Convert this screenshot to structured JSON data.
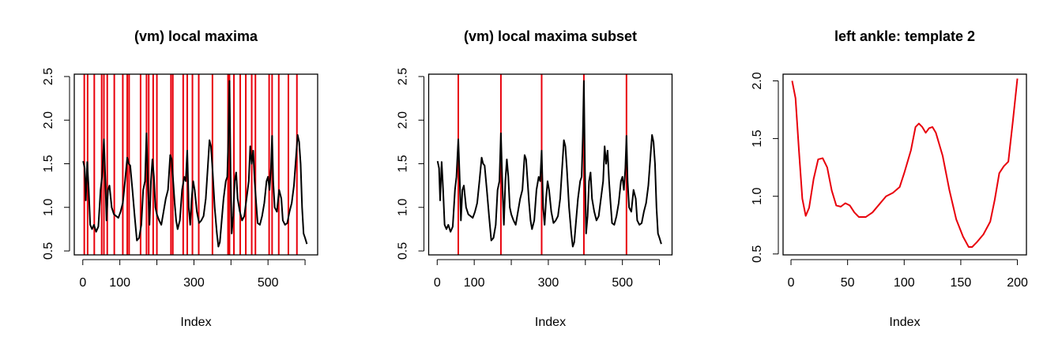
{
  "chart_data": [
    {
      "type": "line",
      "title": "(vm) local maxima",
      "xlabel": "Index",
      "x": [
        1,
        5,
        8,
        12,
        16,
        20,
        25,
        30,
        36,
        42,
        48,
        52,
        57,
        61,
        64,
        68,
        72,
        78,
        84,
        90,
        96,
        102,
        108,
        114,
        120,
        124,
        128,
        134,
        140,
        146,
        152,
        158,
        163,
        168,
        172,
        176,
        180,
        184,
        188,
        192,
        196,
        200,
        206,
        212,
        218,
        224,
        230,
        236,
        240,
        244,
        248,
        252,
        256,
        262,
        268,
        274,
        278,
        282,
        286,
        290,
        294,
        298,
        302,
        308,
        314,
        320,
        326,
        332,
        338,
        342,
        346,
        350,
        356,
        362,
        366,
        370,
        374,
        380,
        386,
        390,
        393,
        396,
        399,
        402,
        406,
        410,
        414,
        418,
        424,
        430,
        436,
        442,
        448,
        452,
        456,
        460,
        464,
        468,
        472,
        478,
        484,
        490,
        496,
        500,
        504,
        508,
        511,
        514,
        518,
        524,
        530,
        536,
        540,
        546,
        552,
        558,
        564,
        570,
        576,
        580,
        584,
        588,
        592,
        596,
        600,
        605
      ],
      "series": [
        {
          "color": "#000000",
          "values": [
            1.53,
            1.45,
            1.08,
            1.52,
            1.2,
            0.8,
            0.75,
            0.8,
            0.72,
            0.78,
            1.2,
            1.35,
            1.78,
            1.3,
            0.85,
            1.2,
            1.25,
            1.0,
            0.92,
            0.9,
            0.88,
            0.95,
            1.05,
            1.3,
            1.57,
            1.5,
            1.48,
            1.2,
            0.9,
            0.62,
            0.65,
            0.8,
            1.2,
            1.3,
            1.85,
            1.25,
            0.8,
            1.3,
            1.55,
            1.35,
            1.0,
            0.92,
            0.85,
            0.8,
            0.95,
            1.1,
            1.2,
            1.6,
            1.55,
            1.3,
            1.05,
            0.85,
            0.75,
            0.85,
            1.2,
            1.35,
            1.3,
            1.65,
            1.0,
            0.8,
            1.1,
            1.3,
            1.2,
            0.95,
            0.82,
            0.85,
            0.9,
            1.1,
            1.5,
            1.77,
            1.7,
            1.45,
            1.0,
            0.7,
            0.55,
            0.6,
            0.8,
            1.1,
            1.3,
            1.35,
            1.8,
            2.45,
            1.4,
            0.7,
            0.9,
            1.3,
            1.4,
            1.1,
            0.95,
            0.85,
            0.9,
            1.1,
            1.3,
            1.7,
            1.5,
            1.65,
            1.3,
            1.05,
            0.82,
            0.8,
            0.9,
            1.05,
            1.3,
            1.35,
            1.2,
            1.45,
            1.82,
            1.3,
            1.0,
            0.95,
            1.2,
            1.1,
            0.85,
            0.8,
            0.82,
            0.95,
            1.05,
            1.25,
            1.6,
            1.83,
            1.75,
            1.5,
            1.0,
            0.7,
            0.65,
            0.58
          ]
        }
      ],
      "vlines": [
        4,
        13,
        31,
        51,
        57,
        66,
        85,
        108,
        120,
        125,
        156,
        172,
        178,
        190,
        200,
        238,
        243,
        271,
        282,
        296,
        313,
        350,
        392,
        396,
        408,
        425,
        440,
        456,
        466,
        503,
        511,
        529,
        555,
        578
      ],
      "vline_color": "#e8000b",
      "xlim": [
        -23,
        634
      ],
      "xticks": [
        0,
        100,
        {
          "value": 200,
          "label": null
        },
        300,
        {
          "value": 400,
          "label": null
        },
        500,
        {
          "value": 600,
          "label": null
        }
      ],
      "ylim": [
        0.455,
        2.527
      ],
      "yticks": [
        0.5,
        {
          "value": 1,
          "label": "1.0"
        },
        1.5,
        {
          "value": 2,
          "label": "2.0"
        },
        2.5
      ]
    },
    {
      "type": "line",
      "title": "(vm) local maxima subset",
      "xlabel": "Index",
      "x": [
        1,
        5,
        8,
        12,
        16,
        20,
        25,
        30,
        36,
        42,
        48,
        52,
        57,
        61,
        64,
        68,
        72,
        78,
        84,
        90,
        96,
        102,
        108,
        114,
        120,
        124,
        128,
        134,
        140,
        146,
        152,
        158,
        163,
        168,
        172,
        176,
        180,
        184,
        188,
        192,
        196,
        200,
        206,
        212,
        218,
        224,
        230,
        236,
        240,
        244,
        248,
        252,
        256,
        262,
        268,
        274,
        278,
        282,
        286,
        290,
        294,
        298,
        302,
        308,
        314,
        320,
        326,
        332,
        338,
        342,
        346,
        350,
        356,
        362,
        366,
        370,
        374,
        380,
        386,
        390,
        393,
        396,
        399,
        402,
        406,
        410,
        414,
        418,
        424,
        430,
        436,
        442,
        448,
        452,
        456,
        460,
        464,
        468,
        472,
        478,
        484,
        490,
        496,
        500,
        504,
        508,
        511,
        514,
        518,
        524,
        530,
        536,
        540,
        546,
        552,
        558,
        564,
        570,
        576,
        580,
        584,
        588,
        592,
        596,
        600,
        605
      ],
      "series": [
        {
          "color": "#000000",
          "values": [
            1.53,
            1.45,
            1.08,
            1.52,
            1.2,
            0.8,
            0.75,
            0.8,
            0.72,
            0.78,
            1.2,
            1.35,
            1.78,
            1.3,
            0.85,
            1.2,
            1.25,
            1.0,
            0.92,
            0.9,
            0.88,
            0.95,
            1.05,
            1.3,
            1.57,
            1.5,
            1.48,
            1.2,
            0.9,
            0.62,
            0.65,
            0.8,
            1.2,
            1.3,
            1.85,
            1.25,
            0.8,
            1.3,
            1.55,
            1.35,
            1.0,
            0.92,
            0.85,
            0.8,
            0.95,
            1.1,
            1.2,
            1.6,
            1.55,
            1.3,
            1.05,
            0.85,
            0.75,
            0.85,
            1.2,
            1.35,
            1.3,
            1.65,
            1.0,
            0.8,
            1.1,
            1.3,
            1.2,
            0.95,
            0.82,
            0.85,
            0.9,
            1.1,
            1.5,
            1.77,
            1.7,
            1.45,
            1.0,
            0.7,
            0.55,
            0.6,
            0.8,
            1.1,
            1.3,
            1.35,
            1.8,
            2.45,
            1.4,
            0.7,
            0.9,
            1.3,
            1.4,
            1.1,
            0.95,
            0.85,
            0.9,
            1.1,
            1.3,
            1.7,
            1.5,
            1.65,
            1.3,
            1.05,
            0.82,
            0.8,
            0.9,
            1.05,
            1.3,
            1.35,
            1.2,
            1.45,
            1.82,
            1.3,
            1.0,
            0.95,
            1.2,
            1.1,
            0.85,
            0.8,
            0.82,
            0.95,
            1.05,
            1.25,
            1.6,
            1.83,
            1.75,
            1.5,
            1.0,
            0.7,
            0.65,
            0.58
          ]
        }
      ],
      "vlines": [
        57,
        172,
        282,
        396,
        511
      ],
      "vline_color": "#e8000b",
      "xlim": [
        -23,
        634
      ],
      "xticks": [
        0,
        100,
        {
          "value": 200,
          "label": null
        },
        300,
        {
          "value": 400,
          "label": null
        },
        500,
        {
          "value": 600,
          "label": null
        }
      ],
      "ylim": [
        0.455,
        2.527
      ],
      "yticks": [
        0.5,
        {
          "value": 1,
          "label": "1.0"
        },
        1.5,
        {
          "value": 2,
          "label": "2.0"
        },
        2.5
      ]
    },
    {
      "type": "line",
      "title": "left ankle: template 2",
      "xlabel": "Index",
      "x": [
        1,
        4,
        7,
        10,
        13,
        16,
        20,
        24,
        28,
        32,
        36,
        40,
        44,
        48,
        52,
        56,
        60,
        66,
        72,
        78,
        84,
        90,
        96,
        100,
        106,
        110,
        113,
        116,
        119,
        122,
        125,
        128,
        134,
        140,
        146,
        152,
        157,
        160,
        164,
        170,
        176,
        180,
        184,
        188,
        192,
        196,
        200
      ],
      "series": [
        {
          "color": "#e8000b",
          "values": [
            2.0,
            1.85,
            1.4,
            0.98,
            0.83,
            0.9,
            1.15,
            1.32,
            1.33,
            1.25,
            1.05,
            0.92,
            0.91,
            0.94,
            0.92,
            0.86,
            0.82,
            0.82,
            0.86,
            0.93,
            1.0,
            1.03,
            1.08,
            1.2,
            1.4,
            1.6,
            1.63,
            1.6,
            1.55,
            1.59,
            1.6,
            1.55,
            1.35,
            1.05,
            0.8,
            0.65,
            0.56,
            0.56,
            0.6,
            0.67,
            0.78,
            0.97,
            1.2,
            1.26,
            1.3,
            1.65,
            2.02
          ]
        }
      ],
      "xlim": [
        -7,
        208
      ],
      "xticks": [
        0,
        50,
        100,
        150,
        200
      ],
      "ylim": [
        0.492,
        2.058
      ],
      "yticks": [
        0.5,
        {
          "value": 1,
          "label": "1.0"
        },
        1.5,
        {
          "value": 2,
          "label": "2.0"
        }
      ]
    }
  ]
}
